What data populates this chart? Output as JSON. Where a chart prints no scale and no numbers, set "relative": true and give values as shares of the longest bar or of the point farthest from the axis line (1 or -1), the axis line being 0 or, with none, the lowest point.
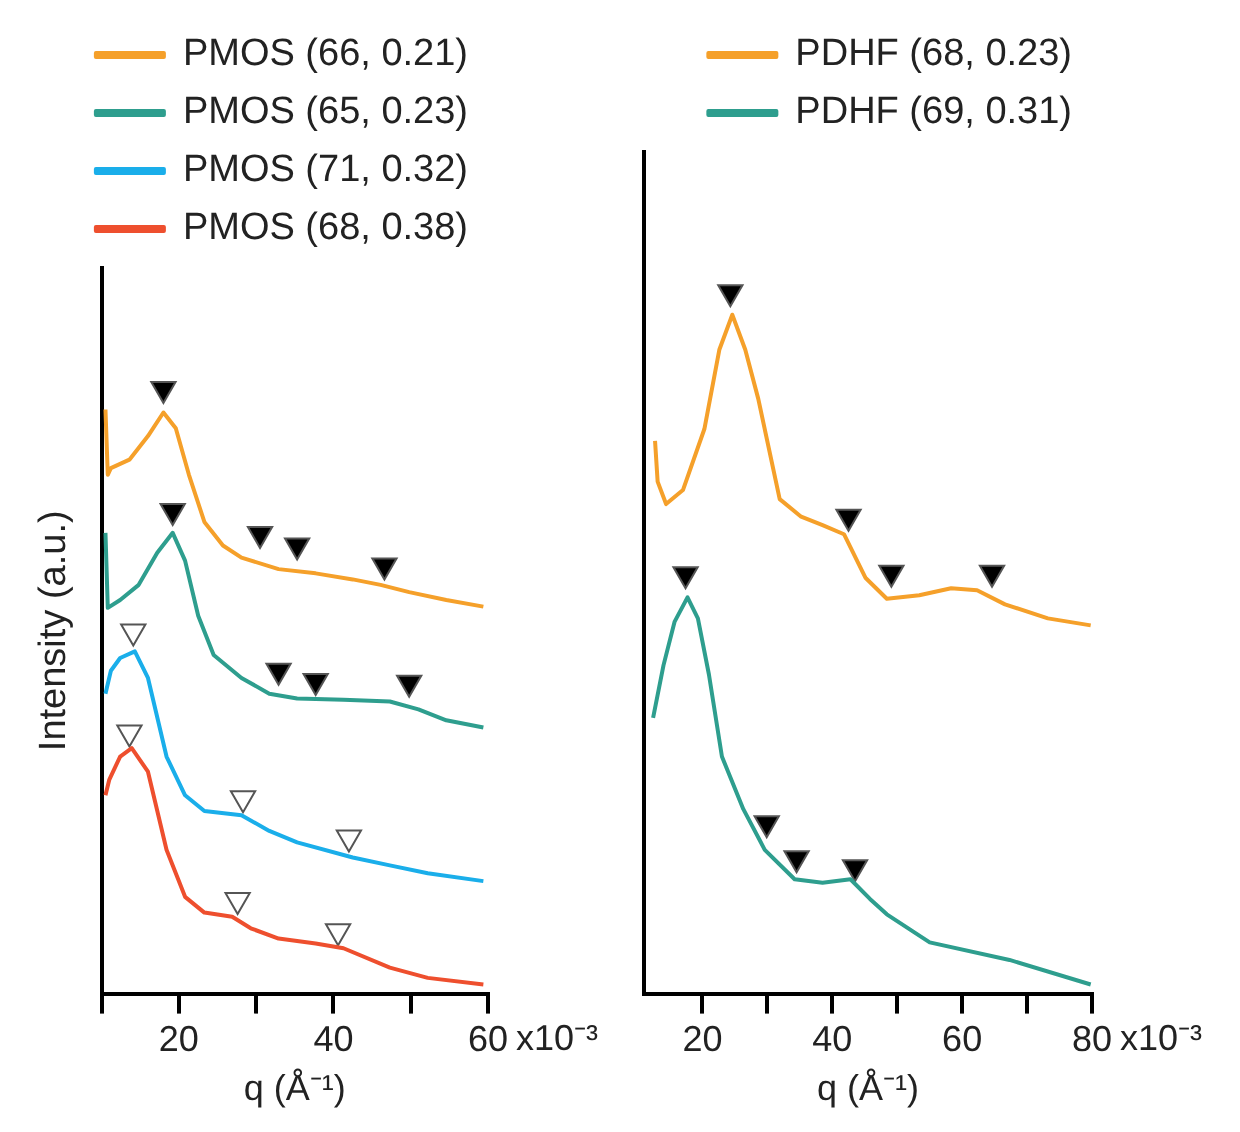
{
  "chart_data": [
    {
      "type": "line",
      "relative": true,
      "ylabel": "Intensity (a.u.)",
      "xlabel": "q (Å⁻¹)",
      "xlim": [
        10,
        60
      ],
      "xticks": [
        {
          "value": 10,
          "label": null
        },
        20,
        {
          "value": 30,
          "label": null
        },
        40,
        {
          "value": 50,
          "label": null
        },
        60
      ],
      "annotations": [
        "x10⁻³"
      ],
      "legend": "top",
      "grid": false,
      "series": [
        {
          "name": "PMOS (66, 0.21)",
          "color": "#f5a02a",
          "x": [
            10.5,
            10.8,
            11.2,
            13.6,
            16.0,
            18.0,
            19.6,
            21.3,
            23.3,
            25.7,
            28.1,
            32.9,
            37.7,
            42.5,
            46.1,
            49.8,
            54.6,
            59.4
          ],
          "values": [
            0.966,
            0.858,
            0.869,
            0.883,
            0.922,
            0.961,
            0.935,
            0.858,
            0.78,
            0.741,
            0.721,
            0.702,
            0.695,
            0.685,
            0.676,
            0.664,
            0.651,
            0.64
          ]
        },
        {
          "name": "PMOS (65, 0.23)",
          "color": "#2e9e8e",
          "x": [
            10.5,
            10.8,
            12.4,
            14.8,
            17.2,
            19.2,
            20.8,
            22.5,
            24.5,
            28.1,
            31.7,
            35.3,
            41.3,
            47.3,
            51.0,
            54.6,
            59.4
          ],
          "values": [
            0.762,
            0.638,
            0.651,
            0.676,
            0.729,
            0.762,
            0.716,
            0.625,
            0.56,
            0.522,
            0.496,
            0.488,
            0.486,
            0.483,
            0.47,
            0.452,
            0.44
          ]
        },
        {
          "name": "PMOS (71, 0.32)",
          "color": "#1aaeea",
          "x": [
            10.5,
            11.2,
            12.4,
            14.3,
            16.0,
            18.4,
            20.8,
            23.3,
            28.1,
            31.7,
            35.3,
            42.5,
            47.3,
            52.2,
            59.4
          ],
          "values": [
            0.496,
            0.534,
            0.555,
            0.566,
            0.522,
            0.392,
            0.328,
            0.302,
            0.295,
            0.269,
            0.25,
            0.225,
            0.212,
            0.199,
            0.186
          ]
        },
        {
          "name": "PMOS (68, 0.38)",
          "color": "#ee4f2e",
          "x": [
            10.5,
            11.0,
            12.4,
            13.9,
            16.0,
            18.4,
            20.8,
            23.3,
            26.9,
            29.3,
            32.9,
            37.7,
            41.3,
            47.3,
            52.2,
            59.4
          ],
          "values": [
            0.328,
            0.354,
            0.392,
            0.406,
            0.367,
            0.238,
            0.16,
            0.134,
            0.127,
            0.108,
            0.091,
            0.083,
            0.075,
            0.043,
            0.026,
            0.015
          ]
        },
        {
          "type": "scatter",
          "marker": "triangle",
          "color": "#000000",
          "x": [
            18.0,
            30.5,
            35.3,
            46.6,
            19.2,
            32.9,
            37.7,
            49.8
          ],
          "values": [
            1.0,
            0.76,
            0.741,
            0.708,
            0.798,
            0.534,
            0.517,
            0.514
          ]
        },
        {
          "type": "scatter",
          "marker": "triangle",
          "color": "#ffffff",
          "x": [
            14.1,
            13.6,
            28.3,
            42.0,
            27.6,
            40.6
          ],
          "values": [
            0.599,
            0.432,
            0.323,
            0.258,
            0.155,
            0.103
          ]
        }
      ]
    },
    {
      "type": "line",
      "relative": true,
      "xlabel": "q (Å⁻¹)",
      "xlim": [
        11,
        80
      ],
      "xticks": [
        20,
        {
          "value": 30,
          "label": null
        },
        40,
        {
          "value": 50,
          "label": null
        },
        60,
        {
          "value": 70,
          "label": null
        },
        80
      ],
      "annotations": [
        "x10⁻³"
      ],
      "legend": "top",
      "grid": false,
      "series": [
        {
          "name": "PDHF (68, 0.23)",
          "color": "#f5a02a",
          "x": [
            12.7,
            13.1,
            14.4,
            17.0,
            20.3,
            22.6,
            24.6,
            26.6,
            28.6,
            31.9,
            35.2,
            38.5,
            41.8,
            45.1,
            48.4,
            53.4,
            58.3,
            62.3,
            66.6,
            73.2,
            79.8
          ],
          "values": [
            0.788,
            0.73,
            0.698,
            0.718,
            0.805,
            0.918,
            0.968,
            0.918,
            0.848,
            0.705,
            0.68,
            0.668,
            0.655,
            0.593,
            0.563,
            0.568,
            0.578,
            0.575,
            0.555,
            0.535,
            0.525
          ]
        },
        {
          "name": "PDHF (69, 0.31)",
          "color": "#2e9e8e",
          "x": [
            12.4,
            14.0,
            15.7,
            17.7,
            19.3,
            21.0,
            23.0,
            26.3,
            29.6,
            34.2,
            38.5,
            42.8,
            45.8,
            48.4,
            55.0,
            67.3,
            79.8
          ],
          "values": [
            0.393,
            0.468,
            0.53,
            0.565,
            0.535,
            0.455,
            0.338,
            0.263,
            0.205,
            0.163,
            0.158,
            0.163,
            0.135,
            0.113,
            0.073,
            0.048,
            0.013
          ]
        },
        {
          "type": "scatter",
          "marker": "triangle",
          "color": "#000000",
          "x": [
            24.3,
            42.5,
            49.1,
            64.6,
            17.4,
            29.9,
            34.5,
            43.5
          ],
          "values": [
            1.0,
            0.68,
            0.6,
            0.6,
            0.598,
            0.243,
            0.193,
            0.18
          ]
        }
      ]
    }
  ]
}
